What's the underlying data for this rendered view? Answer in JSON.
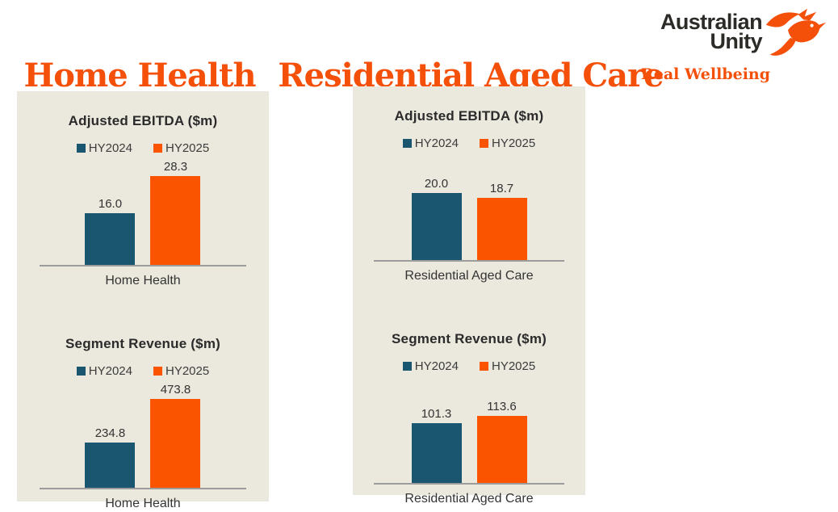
{
  "header": {
    "sections": [
      {
        "title": "Home Health"
      },
      {
        "title": "Residential Aged Care"
      }
    ]
  },
  "logo": {
    "name_line1": "Australian",
    "name_line2": "Unity",
    "tagline": "Real Wellbeing",
    "bird_icon": "hummingbird-icon"
  },
  "colors": {
    "title_orange": "#f4500a",
    "panel_background": "#ebe8dd",
    "axis_line": "#9c9c9c",
    "text_dark": "#2b2b2b",
    "logo_text": "#2d2b28",
    "logo_orange": "#f4500a",
    "series": [
      "#1a566f",
      "#fb5400"
    ]
  },
  "chart_data": [
    {
      "type": "bar",
      "section": "Home Health",
      "title": "Adjusted EBITDA ($m)",
      "categories": [
        "Home Health"
      ],
      "series": [
        {
          "name": "HY2024",
          "values": [
            16.0
          ]
        },
        {
          "name": "HY2025",
          "values": [
            28.3
          ]
        }
      ],
      "ylim": [
        0,
        33
      ],
      "grid": false,
      "legend_position": "top",
      "data_labels": true
    },
    {
      "type": "bar",
      "section": "Home Health",
      "title": "Segment Revenue ($m)",
      "categories": [
        "Home Health"
      ],
      "series": [
        {
          "name": "HY2024",
          "values": [
            234.8
          ]
        },
        {
          "name": "HY2025",
          "values": [
            473.8
          ]
        }
      ],
      "ylim": [
        0,
        550
      ],
      "grid": false,
      "legend_position": "top",
      "data_labels": true
    },
    {
      "type": "bar",
      "section": "Residential Aged Care",
      "title": "Adjusted EBITDA ($m)",
      "categories": [
        "Residential Aged Care"
      ],
      "series": [
        {
          "name": "HY2024",
          "values": [
            20.0
          ]
        },
        {
          "name": "HY2025",
          "values": [
            18.7
          ]
        }
      ],
      "ylim": [
        0,
        32
      ],
      "grid": false,
      "legend_position": "top",
      "data_labels": true
    },
    {
      "type": "bar",
      "section": "Residential Aged Care",
      "title": "Segment Revenue ($m)",
      "categories": [
        "Residential Aged Care"
      ],
      "series": [
        {
          "name": "HY2024",
          "values": [
            101.3
          ]
        },
        {
          "name": "HY2025",
          "values": [
            113.6
          ]
        }
      ],
      "ylim": [
        0,
        180
      ],
      "grid": false,
      "legend_position": "top",
      "data_labels": true
    }
  ]
}
